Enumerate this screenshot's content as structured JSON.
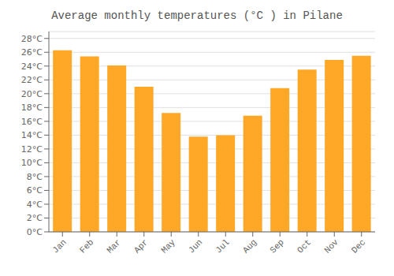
{
  "chart_data": {
    "type": "bar",
    "title": "Average monthly temperatures (°C ) in Pilane",
    "categories": [
      "Jan",
      "Feb",
      "Mar",
      "Apr",
      "May",
      "Jun",
      "Jul",
      "Aug",
      "Sep",
      "Oct",
      "Nov",
      "Dec"
    ],
    "values": [
      26.3,
      25.4,
      24.1,
      21.0,
      17.2,
      13.8,
      14.0,
      16.8,
      20.8,
      23.5,
      24.9,
      25.5
    ],
    "color": "#FFA726",
    "ylim": [
      0,
      29
    ],
    "yticks": [
      {
        "value": 0,
        "label": "0°C"
      },
      {
        "value": 2,
        "label": "2°C"
      },
      {
        "value": 4,
        "label": "4°C"
      },
      {
        "value": 6,
        "label": "6°C"
      },
      {
        "value": 8,
        "label": "8°C"
      },
      {
        "value": 10,
        "label": "10°C"
      },
      {
        "value": 12,
        "label": "12°C"
      },
      {
        "value": 14,
        "label": "14°C"
      },
      {
        "value": 16,
        "label": "16°C"
      },
      {
        "value": 18,
        "label": "18°C"
      },
      {
        "value": 20,
        "label": "20°C"
      },
      {
        "value": 22,
        "label": "22°C"
      },
      {
        "value": 24,
        "label": "24°C"
      },
      {
        "value": 26,
        "label": "26°C"
      },
      {
        "value": 28,
        "label": "28°C"
      }
    ],
    "grid": true
  }
}
